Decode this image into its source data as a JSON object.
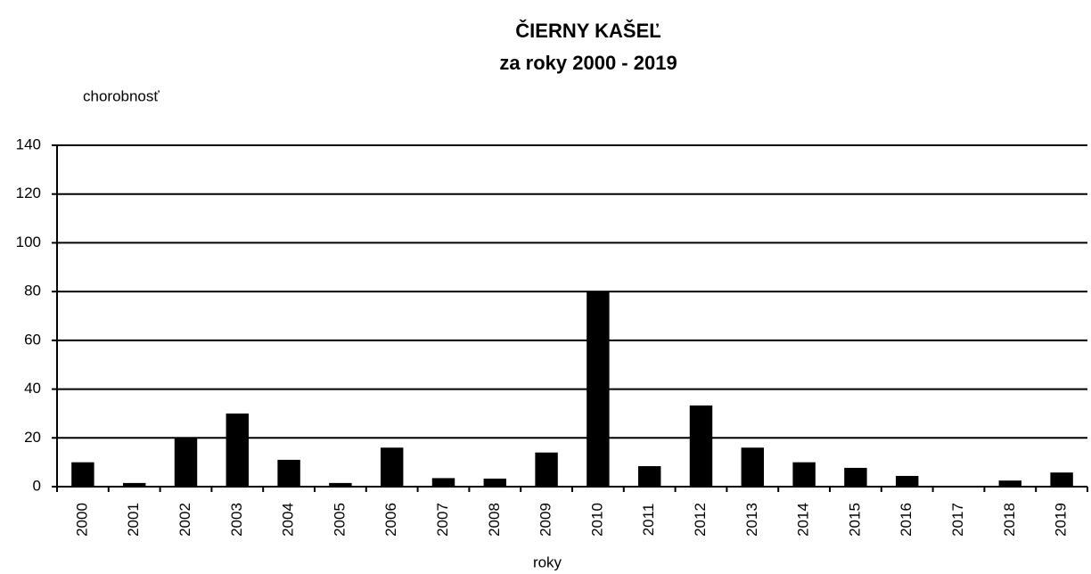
{
  "chart_data": {
    "type": "bar",
    "title": "ČIERNY  KAŠEĽ",
    "subtitle": "za roky 2000 - 2019",
    "y_label": "chorobnosť",
    "x_label": "roky",
    "categories": [
      "2000",
      "2001",
      "2002",
      "2003",
      "2004",
      "2005",
      "2006",
      "2007",
      "2008",
      "2009",
      "2010",
      "2011",
      "2012",
      "2013",
      "2014",
      "2015",
      "2016",
      "2017",
      "2018",
      "2019"
    ],
    "values": [
      10,
      1.5,
      20,
      30,
      11,
      1.5,
      16,
      3.5,
      3.3,
      14,
      80,
      8.4,
      33.3,
      16,
      10,
      7.7,
      4.4,
      0,
      2.5,
      5.8
    ],
    "color": "#000000",
    "ylim": [
      0,
      140
    ],
    "yticks": [
      0,
      20,
      40,
      60,
      80,
      100,
      120,
      140
    ],
    "grid": true
  }
}
